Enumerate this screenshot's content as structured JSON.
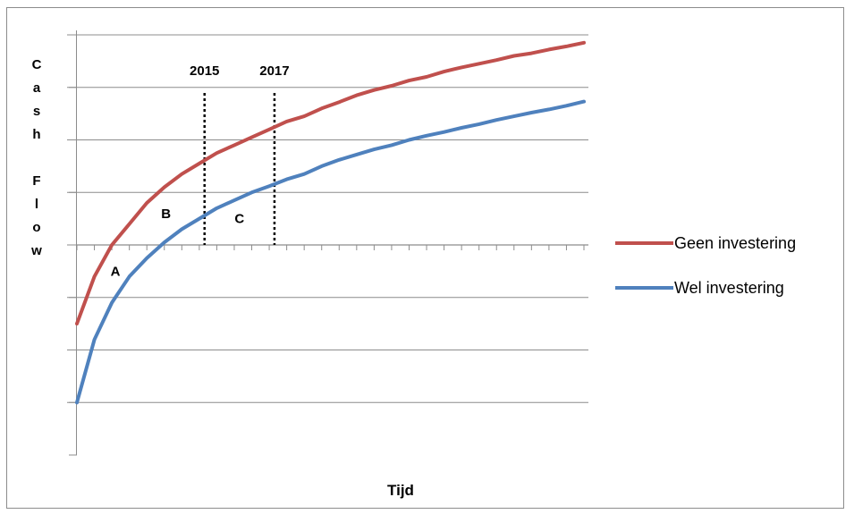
{
  "chart_data": {
    "type": "line",
    "ylabel_letters": [
      "C",
      "a",
      "s",
      "h",
      "",
      "F",
      "l",
      "o",
      "w"
    ],
    "xlabel": "Tijd",
    "ylim": [
      -4,
      4
    ],
    "xlim": [
      0,
      29
    ],
    "grid": true,
    "legend": "right",
    "x": [
      0,
      1,
      2,
      3,
      4,
      5,
      6,
      7,
      8,
      9,
      10,
      11,
      12,
      13,
      14,
      15,
      16,
      17,
      18,
      19,
      20,
      21,
      22,
      23,
      24,
      25,
      26,
      27,
      28,
      29
    ],
    "series": [
      {
        "name": "Geen investering",
        "color": "#c0504d",
        "values": [
          -1.5,
          -0.6,
          0.0,
          0.4,
          0.8,
          1.1,
          1.35,
          1.55,
          1.75,
          1.9,
          2.05,
          2.2,
          2.35,
          2.45,
          2.6,
          2.72,
          2.85,
          2.95,
          3.03,
          3.13,
          3.2,
          3.3,
          3.38,
          3.45,
          3.52,
          3.6,
          3.65,
          3.72,
          3.78,
          3.85
        ]
      },
      {
        "name": "Wel investering",
        "color": "#4f81bd",
        "values": [
          -3.0,
          -1.8,
          -1.1,
          -0.6,
          -0.25,
          0.05,
          0.3,
          0.5,
          0.7,
          0.85,
          1.0,
          1.12,
          1.25,
          1.35,
          1.5,
          1.62,
          1.72,
          1.82,
          1.9,
          2.0,
          2.08,
          2.15,
          2.23,
          2.3,
          2.38,
          2.45,
          2.52,
          2.58,
          2.65,
          2.73
        ]
      }
    ],
    "vlines": [
      {
        "label": "2015",
        "x": 7.3
      },
      {
        "label": "2017",
        "x": 11.3
      }
    ],
    "annotations": [
      {
        "text": "A",
        "x": 2.2,
        "y": -0.5
      },
      {
        "text": "B",
        "x": 5.1,
        "y": 0.6
      },
      {
        "text": "C",
        "x": 9.3,
        "y": 0.5
      }
    ]
  }
}
